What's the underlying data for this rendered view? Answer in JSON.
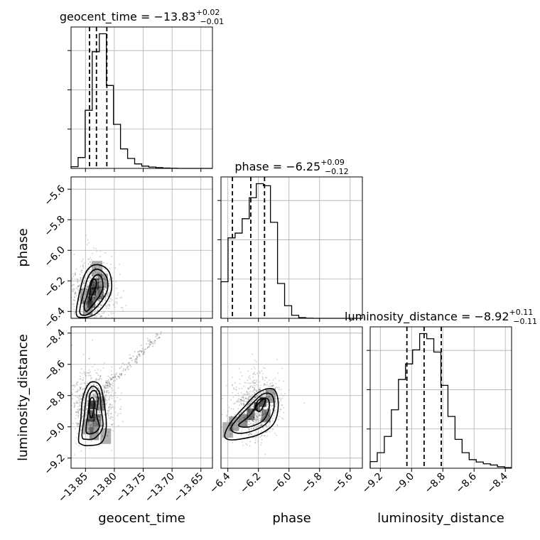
{
  "chart_data": {
    "type": "corner",
    "parameters": [
      "geocent_time",
      "phase",
      "luminosity_distance"
    ],
    "ranges": {
      "geocent_time": [
        -13.875,
        -13.63
      ],
      "phase": [
        -6.445,
        -5.52
      ],
      "luminosity_distance": [
        -9.265,
        -8.36
      ]
    },
    "ticks": {
      "geocent_time": [
        {
          "value": -13.85,
          "label": "−13.85"
        },
        {
          "value": -13.8,
          "label": "−13.80"
        },
        {
          "value": -13.75,
          "label": "−13.75"
        },
        {
          "value": -13.7,
          "label": "−13.70"
        },
        {
          "value": -13.65,
          "label": "−13.65"
        }
      ],
      "phase": [
        {
          "value": -6.4,
          "label": "−6.4"
        },
        {
          "value": -6.2,
          "label": "−6.2"
        },
        {
          "value": -6.0,
          "label": "−6.0"
        },
        {
          "value": -5.8,
          "label": "−5.8"
        },
        {
          "value": -5.6,
          "label": "−5.6"
        }
      ],
      "luminosity_distance": [
        {
          "value": -9.2,
          "label": "−9.2"
        },
        {
          "value": -9.0,
          "label": "−9.0"
        },
        {
          "value": -8.8,
          "label": "−8.8"
        },
        {
          "value": -8.6,
          "label": "−8.6"
        },
        {
          "value": -8.4,
          "label": "−8.4"
        }
      ]
    },
    "titles": {
      "geocent_time": {
        "prefix": "geocent_time = ",
        "median": "−13.83",
        "plus": "+0.02",
        "minus": "−0.01"
      },
      "phase": {
        "prefix": "phase = ",
        "median": "−6.25",
        "plus": "+0.09",
        "minus": "−0.12"
      },
      "luminosity_distance": {
        "prefix": "luminosity_distance = ",
        "median": "−8.92",
        "plus": "+0.11",
        "minus": "−0.11"
      }
    },
    "quantiles": {
      "geocent_time": [
        -13.843,
        -13.831,
        -13.813
      ],
      "phase": [
        -6.37,
        -6.25,
        -6.16
      ],
      "luminosity_distance": [
        -9.03,
        -8.92,
        -8.81
      ]
    },
    "histograms": {
      "geocent_time": {
        "edges": [
          -13.875,
          -13.8628,
          -13.8505,
          -13.8383,
          -13.826,
          -13.8138,
          -13.8015,
          -13.7893,
          -13.777,
          -13.7648,
          -13.7525,
          -13.7403,
          -13.728,
          -13.7158,
          -13.7035,
          -13.6913,
          -13.679,
          -13.6668,
          -13.6545,
          -13.6423,
          -13.63
        ],
        "counts": [
          0.09,
          0.58,
          3.1,
          6.22,
          7.18,
          4.42,
          2.35,
          1.04,
          0.53,
          0.24,
          0.12,
          0.07,
          0.04,
          0.02,
          0.01,
          0,
          0,
          0,
          0,
          0
        ]
      },
      "phase": {
        "edges": [
          -6.445,
          -6.3988,
          -6.3525,
          -6.3063,
          -6.26,
          -6.2138,
          -6.1675,
          -6.1213,
          -6.075,
          -6.0288,
          -5.9825,
          -5.9363,
          -5.89,
          -5.8438,
          -5.7975,
          -5.7513,
          -5.705,
          -5.6588,
          -5.6125,
          -5.5663,
          -5.52
        ],
        "counts": [
          3.05,
          6.7,
          7.1,
          8.3,
          10.05,
          11.22,
          11.05,
          8.0,
          2.9,
          1.05,
          0.25,
          0.06,
          0.01,
          0,
          0,
          0,
          0,
          0,
          0,
          0
        ]
      },
      "luminosity_distance": {
        "edges": [
          -9.265,
          -9.2198,
          -9.1745,
          -9.1293,
          -9.084,
          -9.0388,
          -8.9935,
          -8.9483,
          -8.903,
          -8.8578,
          -8.8125,
          -8.7673,
          -8.722,
          -8.6768,
          -8.6315,
          -8.5863,
          -8.541,
          -8.4958,
          -8.4505,
          -8.4053,
          -8.36
        ],
        "counts": [
          0.45,
          1.05,
          2.15,
          3.95,
          6.0,
          7.05,
          8.0,
          9.1,
          8.75,
          7.85,
          5.6,
          3.5,
          1.95,
          1.05,
          0.58,
          0.42,
          0.3,
          0.22,
          0.1,
          0.04
        ]
      }
    },
    "densities": {
      "geocent_time_vs_phase": {
        "x": "geocent_time",
        "y": "phase",
        "centers": [
          {
            "x": -13.837,
            "y": -6.27,
            "value": 1.0
          },
          {
            "x": -13.833,
            "y": -6.22,
            "value": 0.75
          },
          {
            "x": -13.84,
            "y": -6.34,
            "value": 0.7
          },
          {
            "x": -13.826,
            "y": -6.28,
            "value": 0.55
          },
          {
            "x": -13.846,
            "y": -6.38,
            "value": 0.45
          },
          {
            "x": -13.82,
            "y": -6.2,
            "value": 0.4
          },
          {
            "x": -13.83,
            "y": -6.12,
            "value": 0.3
          },
          {
            "x": -13.85,
            "y": -6.3,
            "value": 0.3
          }
        ]
      },
      "geocent_time_vs_luminosity_distance": {
        "x": "geocent_time",
        "y": "luminosity_distance",
        "centers": [
          {
            "x": -13.837,
            "y": -8.86,
            "value": 1.0
          },
          {
            "x": -13.84,
            "y": -8.93,
            "value": 0.7
          },
          {
            "x": -13.83,
            "y": -8.96,
            "value": 0.6
          },
          {
            "x": -13.835,
            "y": -9.04,
            "value": 0.45
          },
          {
            "x": -13.824,
            "y": -8.85,
            "value": 0.45
          },
          {
            "x": -13.845,
            "y": -9.0,
            "value": 0.35
          },
          {
            "x": -13.815,
            "y": -9.06,
            "value": 0.3
          }
        ]
      },
      "phase_vs_luminosity_distance": {
        "x": "phase",
        "y": "luminosity_distance",
        "centers": [
          {
            "x": -6.21,
            "y": -8.87,
            "value": 1.0
          },
          {
            "x": -6.17,
            "y": -8.84,
            "value": 0.85
          },
          {
            "x": -6.25,
            "y": -8.92,
            "value": 0.7
          },
          {
            "x": -6.3,
            "y": -8.96,
            "value": 0.55
          },
          {
            "x": -6.15,
            "y": -8.93,
            "value": 0.55
          },
          {
            "x": -6.36,
            "y": -8.98,
            "value": 0.4
          },
          {
            "x": -6.12,
            "y": -8.8,
            "value": 0.4
          },
          {
            "x": -6.4,
            "y": -9.02,
            "value": 0.3
          }
        ]
      }
    },
    "contours": {
      "geocent_time_vs_phase": [
        [
          [
            -13.839,
            -6.3
          ],
          [
            -13.834,
            -6.26
          ],
          [
            -13.831,
            -6.22
          ],
          [
            -13.833,
            -6.19
          ],
          [
            -13.838,
            -6.2
          ],
          [
            -13.842,
            -6.26
          ],
          [
            -13.843,
            -6.31
          ],
          [
            -13.841,
            -6.33
          ]
        ],
        [
          [
            -13.852,
            -6.36
          ],
          [
            -13.846,
            -6.28
          ],
          [
            -13.84,
            -6.2
          ],
          [
            -13.83,
            -6.16
          ],
          [
            -13.822,
            -6.18
          ],
          [
            -13.82,
            -6.25
          ],
          [
            -13.828,
            -6.31
          ],
          [
            -13.84,
            -6.37
          ],
          [
            -13.849,
            -6.4
          ]
        ],
        [
          [
            -13.86,
            -6.4
          ],
          [
            -13.852,
            -6.26
          ],
          [
            -13.846,
            -6.18
          ],
          [
            -13.836,
            -6.13
          ],
          [
            -13.824,
            -6.13
          ],
          [
            -13.813,
            -6.18
          ],
          [
            -13.812,
            -6.26
          ],
          [
            -13.822,
            -6.33
          ],
          [
            -13.836,
            -6.39
          ],
          [
            -13.85,
            -6.425
          ]
        ],
        [
          [
            -13.866,
            -6.41
          ],
          [
            -13.858,
            -6.24
          ],
          [
            -13.85,
            -6.15
          ],
          [
            -13.838,
            -6.1
          ],
          [
            -13.822,
            -6.1
          ],
          [
            -13.808,
            -6.15
          ],
          [
            -13.805,
            -6.26
          ],
          [
            -13.816,
            -6.35
          ],
          [
            -13.834,
            -6.42
          ],
          [
            -13.855,
            -6.44
          ]
        ]
      ],
      "geocent_time_vs_luminosity_distance": [
        [
          [
            -13.839,
            -8.94
          ],
          [
            -13.835,
            -8.87
          ],
          [
            -13.836,
            -8.82
          ],
          [
            -13.841,
            -8.82
          ],
          [
            -13.843,
            -8.88
          ],
          [
            -13.842,
            -8.93
          ]
        ],
        [
          [
            -13.849,
            -9.03
          ],
          [
            -13.845,
            -8.9
          ],
          [
            -13.842,
            -8.79
          ],
          [
            -13.833,
            -8.77
          ],
          [
            -13.828,
            -8.82
          ],
          [
            -13.831,
            -8.92
          ],
          [
            -13.826,
            -9.0
          ],
          [
            -13.836,
            -9.04
          ]
        ],
        [
          [
            -13.856,
            -9.06
          ],
          [
            -13.852,
            -8.93
          ],
          [
            -13.848,
            -8.8
          ],
          [
            -13.838,
            -8.74
          ],
          [
            -13.826,
            -8.78
          ],
          [
            -13.823,
            -8.88
          ],
          [
            -13.82,
            -9.0
          ],
          [
            -13.833,
            -9.07
          ],
          [
            -13.848,
            -9.08
          ]
        ],
        [
          [
            -13.862,
            -9.08
          ],
          [
            -13.858,
            -8.95
          ],
          [
            -13.855,
            -8.82
          ],
          [
            -13.843,
            -8.72
          ],
          [
            -13.826,
            -8.73
          ],
          [
            -13.818,
            -8.84
          ],
          [
            -13.814,
            -9.0
          ],
          [
            -13.822,
            -9.1
          ],
          [
            -13.845,
            -9.12
          ],
          [
            -13.858,
            -9.11
          ]
        ]
      ],
      "phase_vs_luminosity_distance": [
        [
          [
            -6.19,
            -8.9
          ],
          [
            -6.16,
            -8.85
          ],
          [
            -6.16,
            -8.82
          ],
          [
            -6.2,
            -8.83
          ],
          [
            -6.22,
            -8.88
          ]
        ],
        [
          [
            -6.33,
            -8.99
          ],
          [
            -6.26,
            -8.93
          ],
          [
            -6.19,
            -8.84
          ],
          [
            -6.14,
            -8.82
          ],
          [
            -6.13,
            -8.88
          ],
          [
            -6.17,
            -8.96
          ],
          [
            -6.26,
            -9.0
          ]
        ],
        [
          [
            -6.38,
            -9.01
          ],
          [
            -6.33,
            -8.94
          ],
          [
            -6.25,
            -8.86
          ],
          [
            -6.17,
            -8.79
          ],
          [
            -6.11,
            -8.8
          ],
          [
            -6.1,
            -8.89
          ],
          [
            -6.15,
            -8.98
          ],
          [
            -6.25,
            -9.03
          ],
          [
            -6.34,
            -9.04
          ]
        ],
        [
          [
            -6.42,
            -9.05
          ],
          [
            -6.38,
            -8.97
          ],
          [
            -6.3,
            -8.88
          ],
          [
            -6.2,
            -8.78
          ],
          [
            -6.1,
            -8.76
          ],
          [
            -6.07,
            -8.86
          ],
          [
            -6.1,
            -8.98
          ],
          [
            -6.2,
            -9.05
          ],
          [
            -6.33,
            -9.08
          ],
          [
            -6.4,
            -9.08
          ]
        ]
      ]
    }
  }
}
